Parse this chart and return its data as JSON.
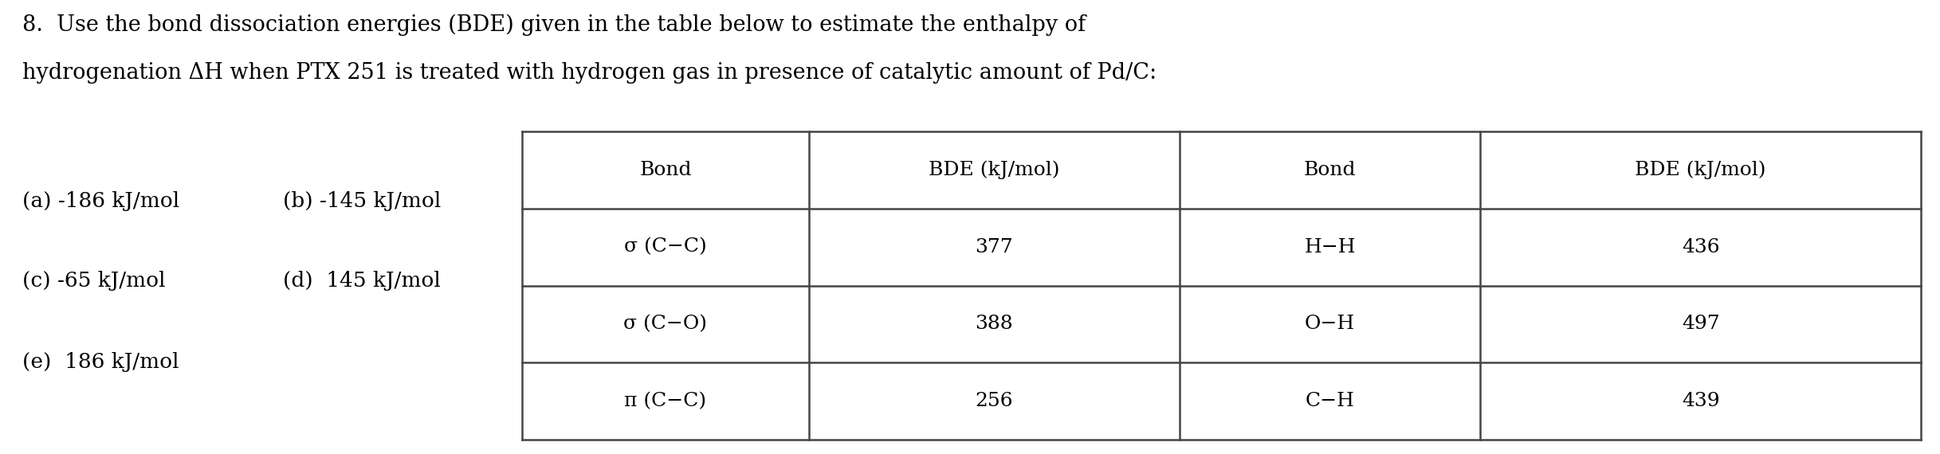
{
  "title_line1": "8.  Use the bond dissociation energies (BDE) given in the table below to estimate the enthalpy of",
  "title_line2": "hydrogenation ΔH when PTX 251 is treated with hydrogen gas in presence of catalytic amount of Pd/C:",
  "options": [
    "(a) -186 kJ/mol",
    "(b) -145 kJ/mol",
    "(c) -65 kJ/mol",
    "(d)  145 kJ/mol",
    "(e)  186 kJ/mol"
  ],
  "table_headers": [
    "Bond",
    "BDE (kJ/mol)",
    "Bond",
    "BDE (kJ/mol)"
  ],
  "table_rows": [
    [
      "σ (C−C)",
      "377",
      "H−H",
      "436"
    ],
    [
      "σ (C−O)",
      "388",
      "O−H",
      "497"
    ],
    [
      "π (C−C)",
      "256",
      "C−H",
      "439"
    ]
  ],
  "bg_color": "#ffffff",
  "text_color": "#000000",
  "line_color": "#444444",
  "font_size_title": 19.5,
  "font_size_options": 19,
  "font_size_table": 18,
  "fig_width": 24.34,
  "fig_height": 5.7,
  "dpi": 100
}
